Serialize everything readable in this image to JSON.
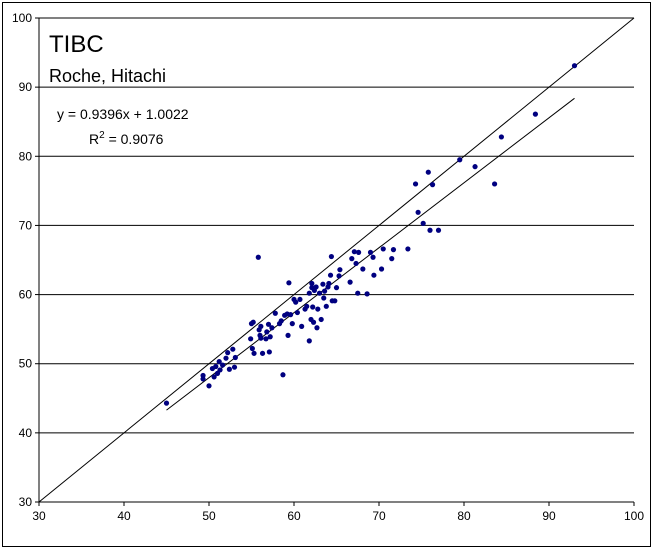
{
  "chart_data": {
    "type": "scatter",
    "title": "TIBC",
    "subtitle": "Roche, Hitachi",
    "xlabel": "",
    "ylabel": "",
    "xlim": [
      30,
      100
    ],
    "ylim": [
      30,
      100
    ],
    "x_ticks": [
      30,
      40,
      50,
      60,
      70,
      80,
      90,
      100
    ],
    "y_ticks": [
      30,
      40,
      50,
      60,
      70,
      80,
      90,
      100
    ],
    "grid": "horizontal major gridlines",
    "legend": "none",
    "point_color": "#000080",
    "line_color": "#000000",
    "annotations": {
      "equation": "y = 0.9396x + 1.0022",
      "r2_prefix": "R",
      "r2_sup": "2",
      "r2_value": " = 0.9076"
    },
    "identity_line": {
      "x": [
        30,
        100
      ],
      "y": [
        30,
        100
      ]
    },
    "trendline": {
      "slope": 0.9396,
      "intercept": 1.0022,
      "x_range": [
        45,
        93
      ]
    },
    "series": [
      {
        "name": "",
        "points": [
          [
            45,
            44.3
          ],
          [
            49.3,
            48.3
          ],
          [
            49.3,
            47.8
          ],
          [
            50,
            46.8
          ],
          [
            50.4,
            49.3
          ],
          [
            50.6,
            48.1
          ],
          [
            50.8,
            49.6
          ],
          [
            51,
            48.6
          ],
          [
            51.2,
            50.3
          ],
          [
            51.3,
            49.1
          ],
          [
            51.6,
            49.8
          ],
          [
            52,
            50.8
          ],
          [
            52.2,
            51.6
          ],
          [
            52.4,
            49.2
          ],
          [
            52.8,
            52.1
          ],
          [
            53,
            49.5
          ],
          [
            53.1,
            50.9
          ],
          [
            54.9,
            53.6
          ],
          [
            55,
            55.8
          ],
          [
            55.2,
            56
          ],
          [
            55.1,
            52.2
          ],
          [
            55.3,
            51.5
          ],
          [
            55.9,
            54.9
          ],
          [
            56,
            54.1
          ],
          [
            56.1,
            55.4
          ],
          [
            55.8,
            65.4
          ],
          [
            56.1,
            53.7
          ],
          [
            56.3,
            51.5
          ],
          [
            56.7,
            53.6
          ],
          [
            56.8,
            54.6
          ],
          [
            57,
            55.7
          ],
          [
            57.2,
            53.9
          ],
          [
            57.1,
            51.7
          ],
          [
            57.4,
            55.2
          ],
          [
            57.8,
            57.3
          ],
          [
            58.3,
            55.8
          ],
          [
            58.5,
            56.2
          ],
          [
            58.7,
            48.4
          ],
          [
            58.9,
            57
          ],
          [
            59.2,
            57.2
          ],
          [
            59.3,
            54.1
          ],
          [
            59.4,
            61.7
          ],
          [
            59.6,
            57.1
          ],
          [
            59.8,
            55.8
          ],
          [
            60,
            59.3
          ],
          [
            60.2,
            58.9
          ],
          [
            60.4,
            57.4
          ],
          [
            60.7,
            59.3
          ],
          [
            60.9,
            55.4
          ],
          [
            61.3,
            57.9
          ],
          [
            61.5,
            58.3
          ],
          [
            61.8,
            53.3
          ],
          [
            61.8,
            60.2
          ],
          [
            62,
            56.4
          ],
          [
            62.1,
            61
          ],
          [
            62.1,
            61.6
          ],
          [
            62.2,
            58.2
          ],
          [
            62.3,
            56
          ],
          [
            62.4,
            60.6
          ],
          [
            62.6,
            61.1
          ],
          [
            62.7,
            55.2
          ],
          [
            62.8,
            57.9
          ],
          [
            63,
            60.2
          ],
          [
            63.2,
            56.4
          ],
          [
            63.4,
            61.5
          ],
          [
            63.5,
            59.5
          ],
          [
            63.6,
            60.5
          ],
          [
            63.8,
            58.3
          ],
          [
            64,
            61.1
          ],
          [
            64.1,
            61.6
          ],
          [
            64.3,
            62.8
          ],
          [
            64.4,
            65.5
          ],
          [
            64.5,
            59.1
          ],
          [
            64.8,
            59.1
          ],
          [
            65,
            61
          ],
          [
            65.3,
            62.7
          ],
          [
            65.4,
            63.6
          ],
          [
            66.6,
            61.8
          ],
          [
            66.8,
            65.2
          ],
          [
            67.1,
            66.2
          ],
          [
            67.3,
            64.5
          ],
          [
            67.5,
            60.2
          ],
          [
            67.6,
            66.1
          ],
          [
            68.1,
            63.7
          ],
          [
            68.6,
            60.1
          ],
          [
            69,
            66.1
          ],
          [
            69.3,
            65.4
          ],
          [
            69.4,
            62.8
          ],
          [
            70.3,
            63.7
          ],
          [
            70.5,
            66.6
          ],
          [
            71.5,
            65.2
          ],
          [
            71.7,
            66.5
          ],
          [
            73.4,
            66.6
          ],
          [
            74.3,
            76
          ],
          [
            74.6,
            71.9
          ],
          [
            75.2,
            70.3
          ],
          [
            75.8,
            77.7
          ],
          [
            76,
            69.3
          ],
          [
            76.3,
            75.9
          ],
          [
            77,
            69.3
          ],
          [
            79.5,
            79.5
          ],
          [
            81.3,
            78.5
          ],
          [
            83.6,
            76
          ],
          [
            84.4,
            82.8
          ],
          [
            88.4,
            86.1
          ],
          [
            93,
            93.1
          ]
        ]
      }
    ]
  }
}
